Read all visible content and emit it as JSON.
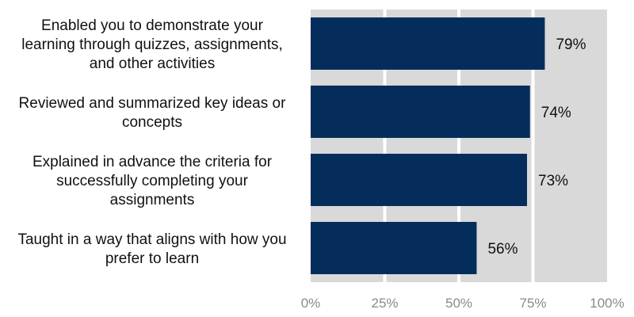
{
  "chart_data": {
    "type": "bar",
    "orientation": "horizontal",
    "categories": [
      "Enabled you to demonstrate your learning through quizzes, assignments, and other activities",
      "Reviewed and summarized key ideas or concepts",
      "Explained in advance the criteria for successfully completing your assignments",
      "Taught in a way that aligns with how you prefer to learn"
    ],
    "category_lines": [
      [
        "Enabled you to demonstrate your",
        "learning through quizzes, assignments,",
        "and other activities"
      ],
      [
        "Reviewed and summarized key ideas or",
        "concepts"
      ],
      [
        "Explained in advance the criteria for",
        "successfully completing your",
        "assignments"
      ],
      [
        "Taught in a way that aligns with how you",
        "prefer to learn"
      ]
    ],
    "values": [
      79,
      74,
      73,
      56
    ],
    "value_labels": [
      "79%",
      "74%",
      "73%",
      "56%"
    ],
    "xlim": [
      0,
      100
    ],
    "x_ticks": [
      0,
      25,
      50,
      75,
      100
    ],
    "x_tick_labels": [
      "0%",
      "25%",
      "50%",
      "75%",
      "100%"
    ],
    "grid": true,
    "title": "",
    "xlabel": "",
    "ylabel": "",
    "colors": {
      "bar": "#052d5c",
      "plot_background": "#d9d9d9",
      "gridline": "#ffffff",
      "tick_text": "#8a8a8a",
      "label_text": "#111111"
    }
  }
}
